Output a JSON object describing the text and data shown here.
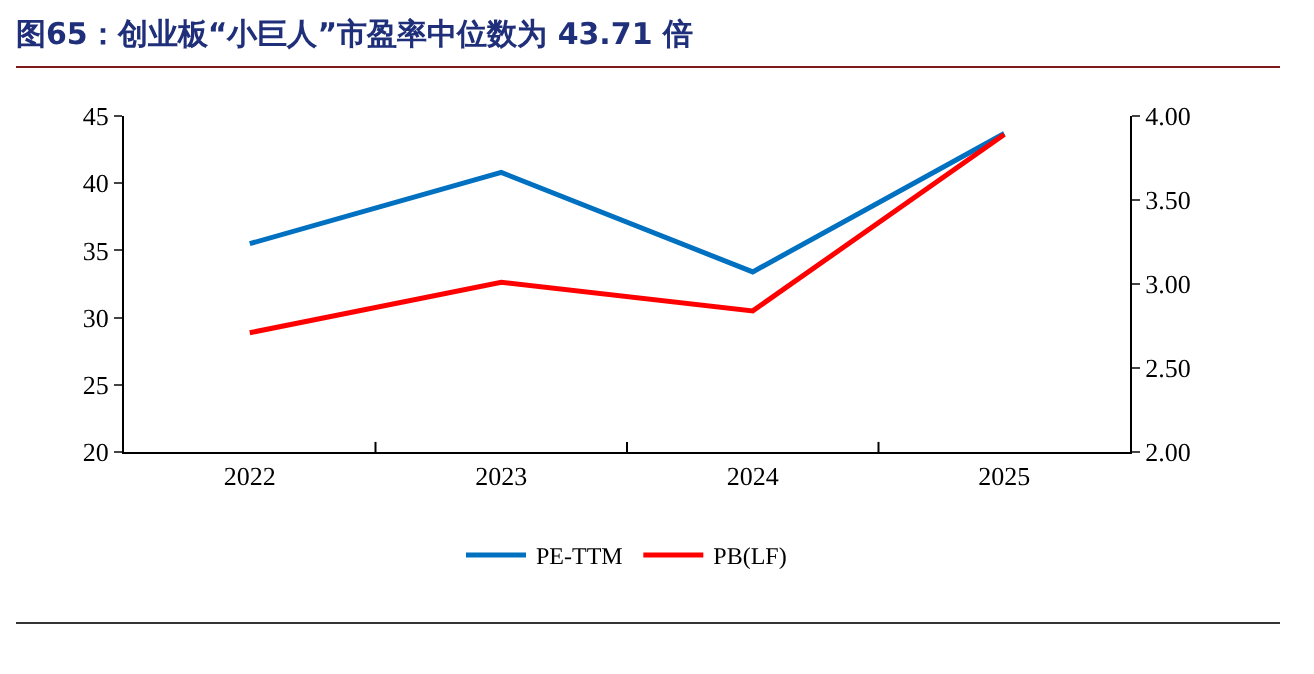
{
  "chart_data": {
    "type": "line",
    "title": "图65：创业板“小巨人”市盈率中位数为 43.71 倍",
    "categories": [
      "2022",
      "2023",
      "2024",
      "2025"
    ],
    "series": [
      {
        "name": "PE-TTM",
        "color": "#0070c0",
        "values": [
          35.5,
          40.8,
          33.4,
          43.7
        ]
      },
      {
        "name": "PB(LF)",
        "color": "#ff0000",
        "values": [
          2.71,
          3.01,
          2.84,
          3.89
        ],
        "axis": "y2"
      }
    ],
    "ylim": [
      20,
      45
    ],
    "yticks": [
      20,
      25,
      30,
      35,
      40,
      45
    ],
    "y2lim": [
      2.0,
      4.0
    ],
    "y2ticks": [
      {
        "value": 2,
        "label": "2.00"
      },
      {
        "value": 2.5,
        "label": "2.50"
      },
      {
        "value": 3,
        "label": "3.00"
      },
      {
        "value": 3.5,
        "label": "3.50"
      },
      {
        "value": 4,
        "label": "4.00"
      }
    ],
    "grid": false,
    "legend": "bottom",
    "marker": "none",
    "line_style": "solid"
  }
}
